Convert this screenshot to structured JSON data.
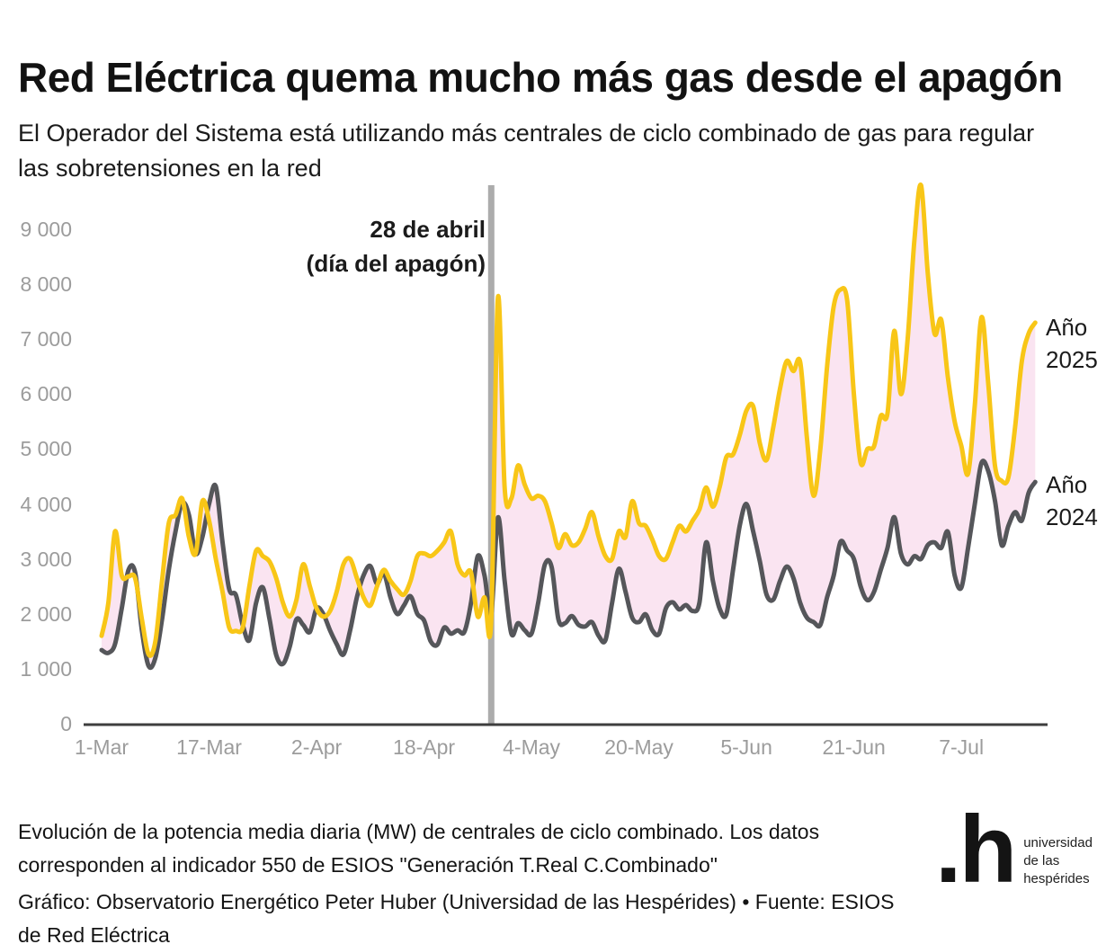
{
  "header": {
    "title": "Red Eléctrica quema mucho más gas desde el apagón",
    "subtitle": "El Operador del Sistema está utilizando más centrales de ciclo combinado de gas para regular las sobretensiones en la red"
  },
  "footer": {
    "note": "Evolución de la potencia media diaria (MW) de centrales de ciclo combinado. Los datos corresponden al indicador 550 de ESIOS \"Generación T.Real C.Combinado\"",
    "credit": "Gráfico: Observatorio Energético Peter Huber (Universidad de las Hespérides) • Fuente: ESIOS de Red Eléctrica"
  },
  "logo": {
    "mark": ".h",
    "text": [
      "universidad",
      "de las",
      "hespérides"
    ]
  },
  "chart_data": {
    "type": "line",
    "title": "Red Eléctrica quema mucho más gas desde el apagón",
    "xlabel": "",
    "ylabel": "",
    "unit": "MW",
    "ylim": [
      0,
      9800
    ],
    "grid": false,
    "x_tick_labels": [
      "1-Mar",
      "17-Mar",
      "2-Apr",
      "18-Apr",
      "4-May",
      "20-May",
      "5-Jun",
      "21-Jun",
      "7-Jul"
    ],
    "x_tick_days": [
      0,
      16,
      32,
      48,
      64,
      80,
      96,
      112,
      128
    ],
    "y_tick_values": [
      0,
      1000,
      2000,
      3000,
      4000,
      5000,
      6000,
      7000,
      8000,
      9000
    ],
    "y_tick_labels": [
      "0",
      "1 000",
      "2 000",
      "3 000",
      "4 000",
      "5 000",
      "6 000",
      "7 000",
      "8 000",
      "9 000"
    ],
    "event_line": {
      "day": 58,
      "label_line1": "28 de abril",
      "label_line2": "(día del apagón)",
      "color": "#ACACAC"
    },
    "fill_between_color": "#FAE4F1",
    "axis_color": "#3d3d3d",
    "tick_text_color": "#9c9c9c",
    "series": [
      {
        "name": "Año 2025",
        "color": "#F8C617",
        "values": [
          1600,
          2200,
          3500,
          2700,
          2680,
          2650,
          1900,
          1260,
          1500,
          2600,
          3650,
          3800,
          4100,
          3400,
          3100,
          4050,
          3700,
          3000,
          2400,
          1750,
          1690,
          1750,
          2500,
          3150,
          3050,
          2950,
          2650,
          2200,
          1950,
          2250,
          2900,
          2500,
          2100,
          1950,
          2050,
          2400,
          2900,
          3000,
          2650,
          2300,
          2150,
          2500,
          2800,
          2600,
          2450,
          2350,
          2600,
          3050,
          3100,
          3050,
          3150,
          3300,
          3500,
          2900,
          2700,
          2750,
          1950,
          2300,
          1900,
          7750,
          4300,
          4100,
          4700,
          4350,
          4100,
          4150,
          4050,
          3650,
          3200,
          3450,
          3250,
          3300,
          3550,
          3850,
          3400,
          3050,
          3000,
          3500,
          3400,
          4050,
          3650,
          3600,
          3350,
          3050,
          3000,
          3300,
          3600,
          3500,
          3700,
          3900,
          4300,
          3950,
          4300,
          4850,
          4900,
          5250,
          5700,
          5780,
          5100,
          4800,
          5400,
          6100,
          6600,
          6420,
          6580,
          5200,
          4150,
          5000,
          6500,
          7600,
          7900,
          7700,
          6000,
          4750,
          5000,
          5050,
          5600,
          5650,
          7150,
          6000,
          7000,
          8800,
          9800,
          8200,
          7100,
          7350,
          6300,
          5500,
          5050,
          4550,
          5800,
          7400,
          6200,
          4700,
          4420,
          4480,
          5400,
          6600,
          7100,
          7300
        ]
      },
      {
        "name": "Año 2024",
        "color": "#55565A",
        "values": [
          1340,
          1290,
          1450,
          2100,
          2800,
          2750,
          1700,
          1050,
          1200,
          1900,
          2800,
          3500,
          4020,
          3800,
          3100,
          3400,
          4000,
          4320,
          3300,
          2450,
          2340,
          1800,
          1520,
          2200,
          2480,
          1900,
          1250,
          1090,
          1400,
          1900,
          1800,
          1670,
          2100,
          2000,
          1700,
          1450,
          1260,
          1700,
          2300,
          2700,
          2870,
          2550,
          2750,
          2300,
          2000,
          2150,
          2320,
          2000,
          1880,
          1500,
          1440,
          1750,
          1640,
          1700,
          1670,
          2200,
          3050,
          2700,
          2000,
          3750,
          2600,
          1640,
          1830,
          1700,
          1640,
          2200,
          2900,
          2850,
          1900,
          1830,
          1960,
          1800,
          1770,
          1850,
          1600,
          1520,
          2200,
          2820,
          2400,
          1930,
          1850,
          1990,
          1700,
          1640,
          2100,
          2210,
          2080,
          2160,
          2050,
          2200,
          3300,
          2600,
          2100,
          1990,
          2800,
          3600,
          4000,
          3500,
          2950,
          2350,
          2260,
          2600,
          2860,
          2650,
          2200,
          1930,
          1850,
          1800,
          2300,
          2700,
          3310,
          3150,
          3000,
          2500,
          2250,
          2400,
          2800,
          3200,
          3760,
          3100,
          2900,
          3050,
          3000,
          3250,
          3300,
          3200,
          3490,
          2700,
          2480,
          3200,
          4000,
          4750,
          4600,
          4060,
          3250,
          3600,
          3850,
          3700,
          4200,
          4400
        ]
      }
    ]
  }
}
